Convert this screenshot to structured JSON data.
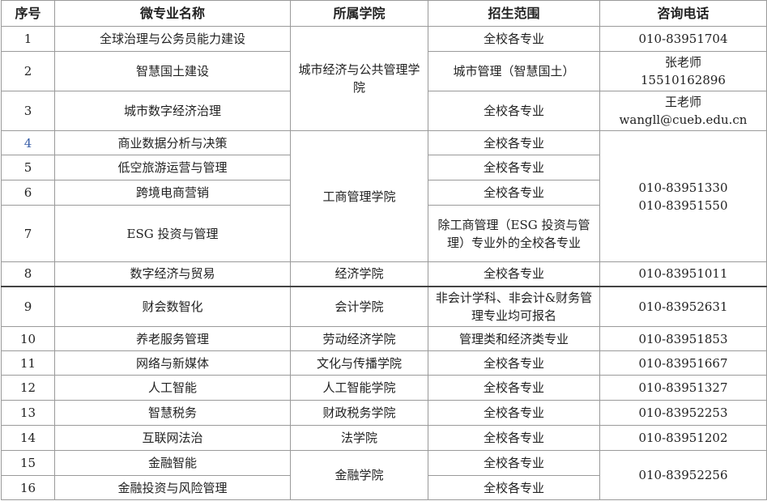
{
  "headers": [
    "序号",
    "微专业名称",
    "所属学院",
    "招生范围",
    "咨询电话"
  ],
  "rows": [
    {
      "no": "1",
      "name": "全球治理与公务员能力建设",
      "scope": "全校各专业",
      "phone": "010-83951704"
    },
    {
      "no": "2",
      "name": "智慧国土建设",
      "scope": "城市管理（智慧国土）",
      "phone": "张老师",
      "phone2": "15510162896"
    },
    {
      "no": "3",
      "name": "城市数字经济治理",
      "scope": "全校各专业",
      "phone": "王老师",
      "phone2": "wangll@cueb.edu.cn"
    },
    {
      "no": "4",
      "name": "商业数据分析与决策",
      "scope": "全校各专业"
    },
    {
      "no": "5",
      "name": "低空旅游运营与管理",
      "scope": "全校各专业"
    },
    {
      "no": "6",
      "name": "跨境电商营销",
      "scope": "全校各专业"
    },
    {
      "no": "7",
      "name": "ESG 投资与管理",
      "scope": "除工商管理（ESG 投资与管理）专业外的全校各专业"
    },
    {
      "no": "8",
      "name": "数字经济与贸易",
      "college": "经济学院",
      "scope": "全校各专业",
      "phone": "010-83951011"
    },
    {
      "no": "9",
      "name": "财会数智化",
      "college": "会计学院",
      "scope": "非会计学科、非会计&财务管理专业均可报名",
      "phone": "010-83952631"
    },
    {
      "no": "10",
      "name": "养老服务管理",
      "college": "劳动经济学院",
      "scope": "管理类和经济类专业",
      "phone": "010-83951853"
    },
    {
      "no": "11",
      "name": "网络与新媒体",
      "college": "文化与传播学院",
      "scope": "全校各专业",
      "phone": "010-83951667"
    },
    {
      "no": "12",
      "name": "人工智能",
      "college": "人工智能学院",
      "scope": "全校各专业",
      "phone": "010-83951327"
    },
    {
      "no": "13",
      "name": "智慧税务",
      "college": "财政税务学院",
      "scope": "全校各专业",
      "phone": "010-83952253"
    },
    {
      "no": "14",
      "name": "互联网法治",
      "college": "法学院",
      "scope": "全校各专业",
      "phone": "010-83951202"
    },
    {
      "no": "15",
      "name": "金融智能",
      "scope": "全校各专业"
    },
    {
      "no": "16",
      "name": "金融投资与风险管理",
      "scope": "全校各专业"
    }
  ],
  "merged": {
    "college_1_3": "城市经济与公共管理学院",
    "college_4_7": "工商管理学院",
    "phone_4_7": "010-83951330",
    "phone_4_7_b": "010-83951550",
    "college_15_16": "金融学院",
    "phone_15_16": "010-83952256"
  }
}
